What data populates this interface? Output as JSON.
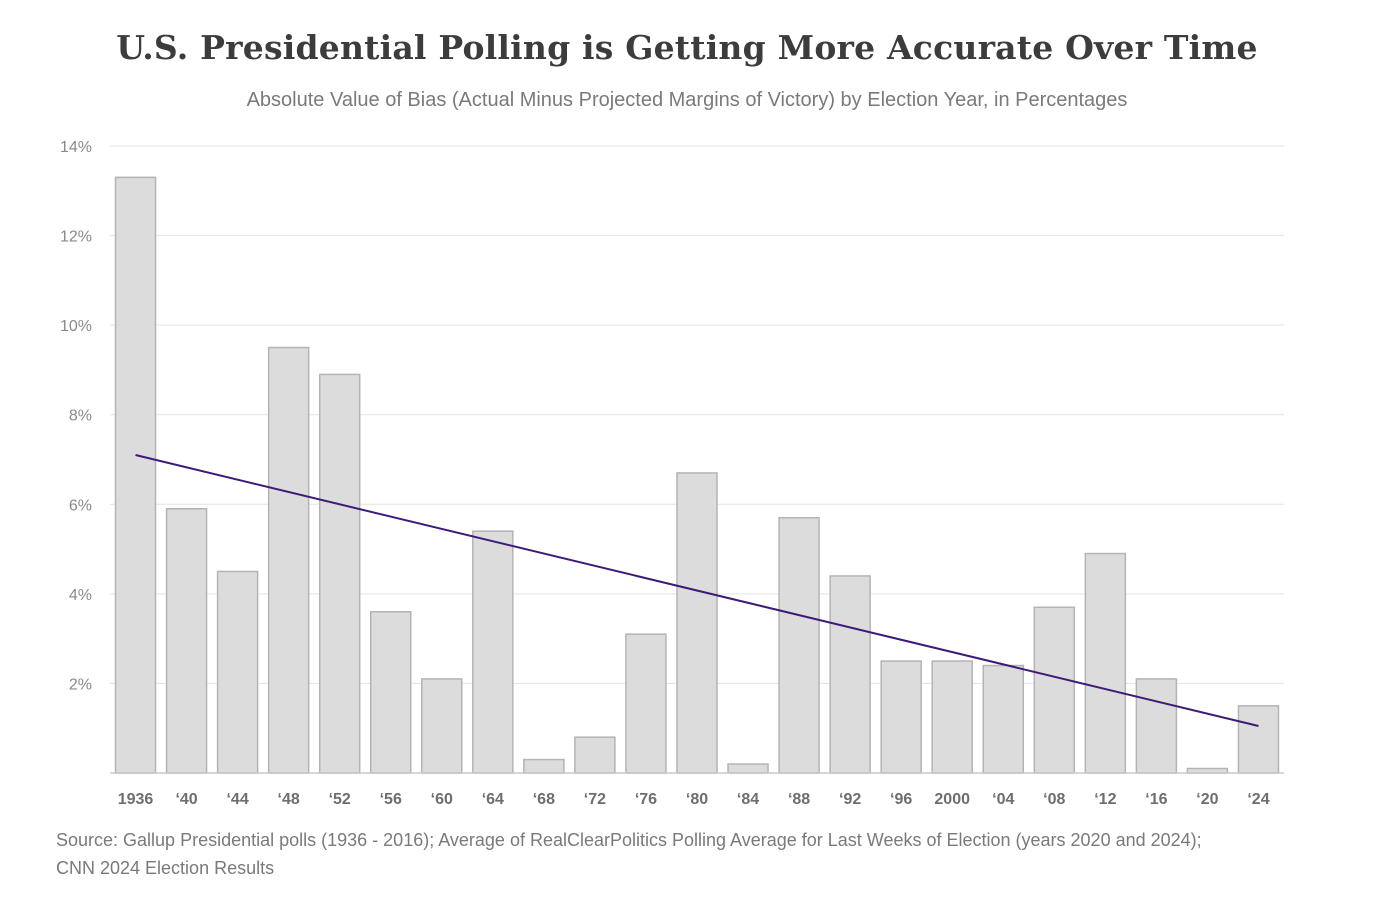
{
  "chart_data": {
    "type": "bar",
    "title": "U.S. Presidential Polling is Getting More Accurate Over Time",
    "subtitle": "Absolute Value of Bias (Actual Minus Projected Margins of Victory) by Election Year, in Percentages",
    "categories": [
      "1936",
      "‘40",
      "‘44",
      "‘48",
      "‘52",
      "‘56",
      "‘60",
      "‘64",
      "‘68",
      "‘72",
      "‘76",
      "‘80",
      "‘84",
      "‘88",
      "‘92",
      "‘96",
      "2000",
      "‘04",
      "‘08",
      "‘12",
      "‘16",
      "‘20",
      "‘24"
    ],
    "values": [
      13.3,
      5.9,
      4.5,
      9.5,
      8.9,
      3.6,
      2.1,
      5.4,
      0.3,
      0.8,
      3.1,
      6.7,
      0.2,
      5.7,
      4.4,
      2.5,
      2.5,
      2.4,
      3.7,
      4.9,
      2.1,
      0.1,
      1.5
    ],
    "trendline": {
      "start": 7.1,
      "end": 1.05
    },
    "yticks": [
      "2%",
      "4%",
      "6%",
      "8%",
      "10%",
      "12%",
      "14%"
    ],
    "ytick_values": [
      2,
      4,
      6,
      8,
      10,
      12,
      14
    ],
    "ylim": [
      0,
      14
    ],
    "xlabel": "",
    "ylabel": "",
    "grid": true,
    "bar_color": "#dcdcdc",
    "bar_border_color": "#b4b4b4",
    "trend_color": "#3d1a78"
  },
  "source_lines": [
    "Source: Gallup Presidential polls (1936 - 2016); Average of RealClearPolitics Polling Average for Last Weeks of Election (years 2020 and 2024);",
    "CNN 2024 Election Results"
  ]
}
